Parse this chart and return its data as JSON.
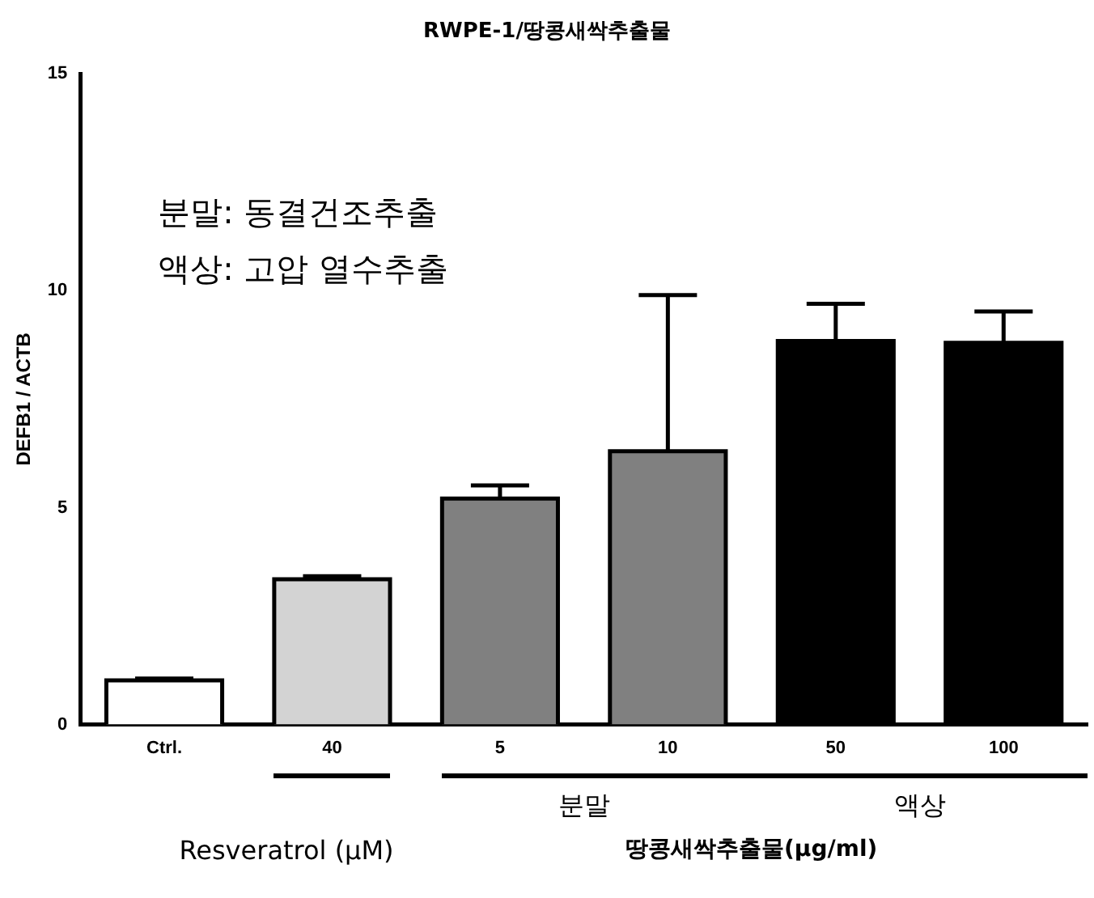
{
  "chart_data": {
    "type": "bar",
    "title": "RWPE-1/땅콩새싹추출물",
    "ylabel": "DEFB1 / ACTB",
    "categories": [
      "Ctrl.",
      "40",
      "5",
      "10",
      "50",
      "100"
    ],
    "values": [
      1.02,
      3.35,
      5.21,
      6.3,
      8.84,
      8.8
    ],
    "errors": [
      0.04,
      0.07,
      0.3,
      3.6,
      0.86,
      0.72
    ],
    "colors": [
      "#ffffff",
      "#d3d3d3",
      "#808080",
      "#808080",
      "#000000",
      "#000000"
    ],
    "ylim": [
      0,
      15
    ],
    "yticks": [
      0,
      5,
      10,
      15
    ],
    "grid": false,
    "legend": false,
    "annotations": [
      "분말: 동결건조추출",
      "액상: 고압 열수추출",
      "분말",
      "액상",
      "Resveratrol (μM)",
      "땅콩새싹추출물(μg/ml)"
    ]
  }
}
